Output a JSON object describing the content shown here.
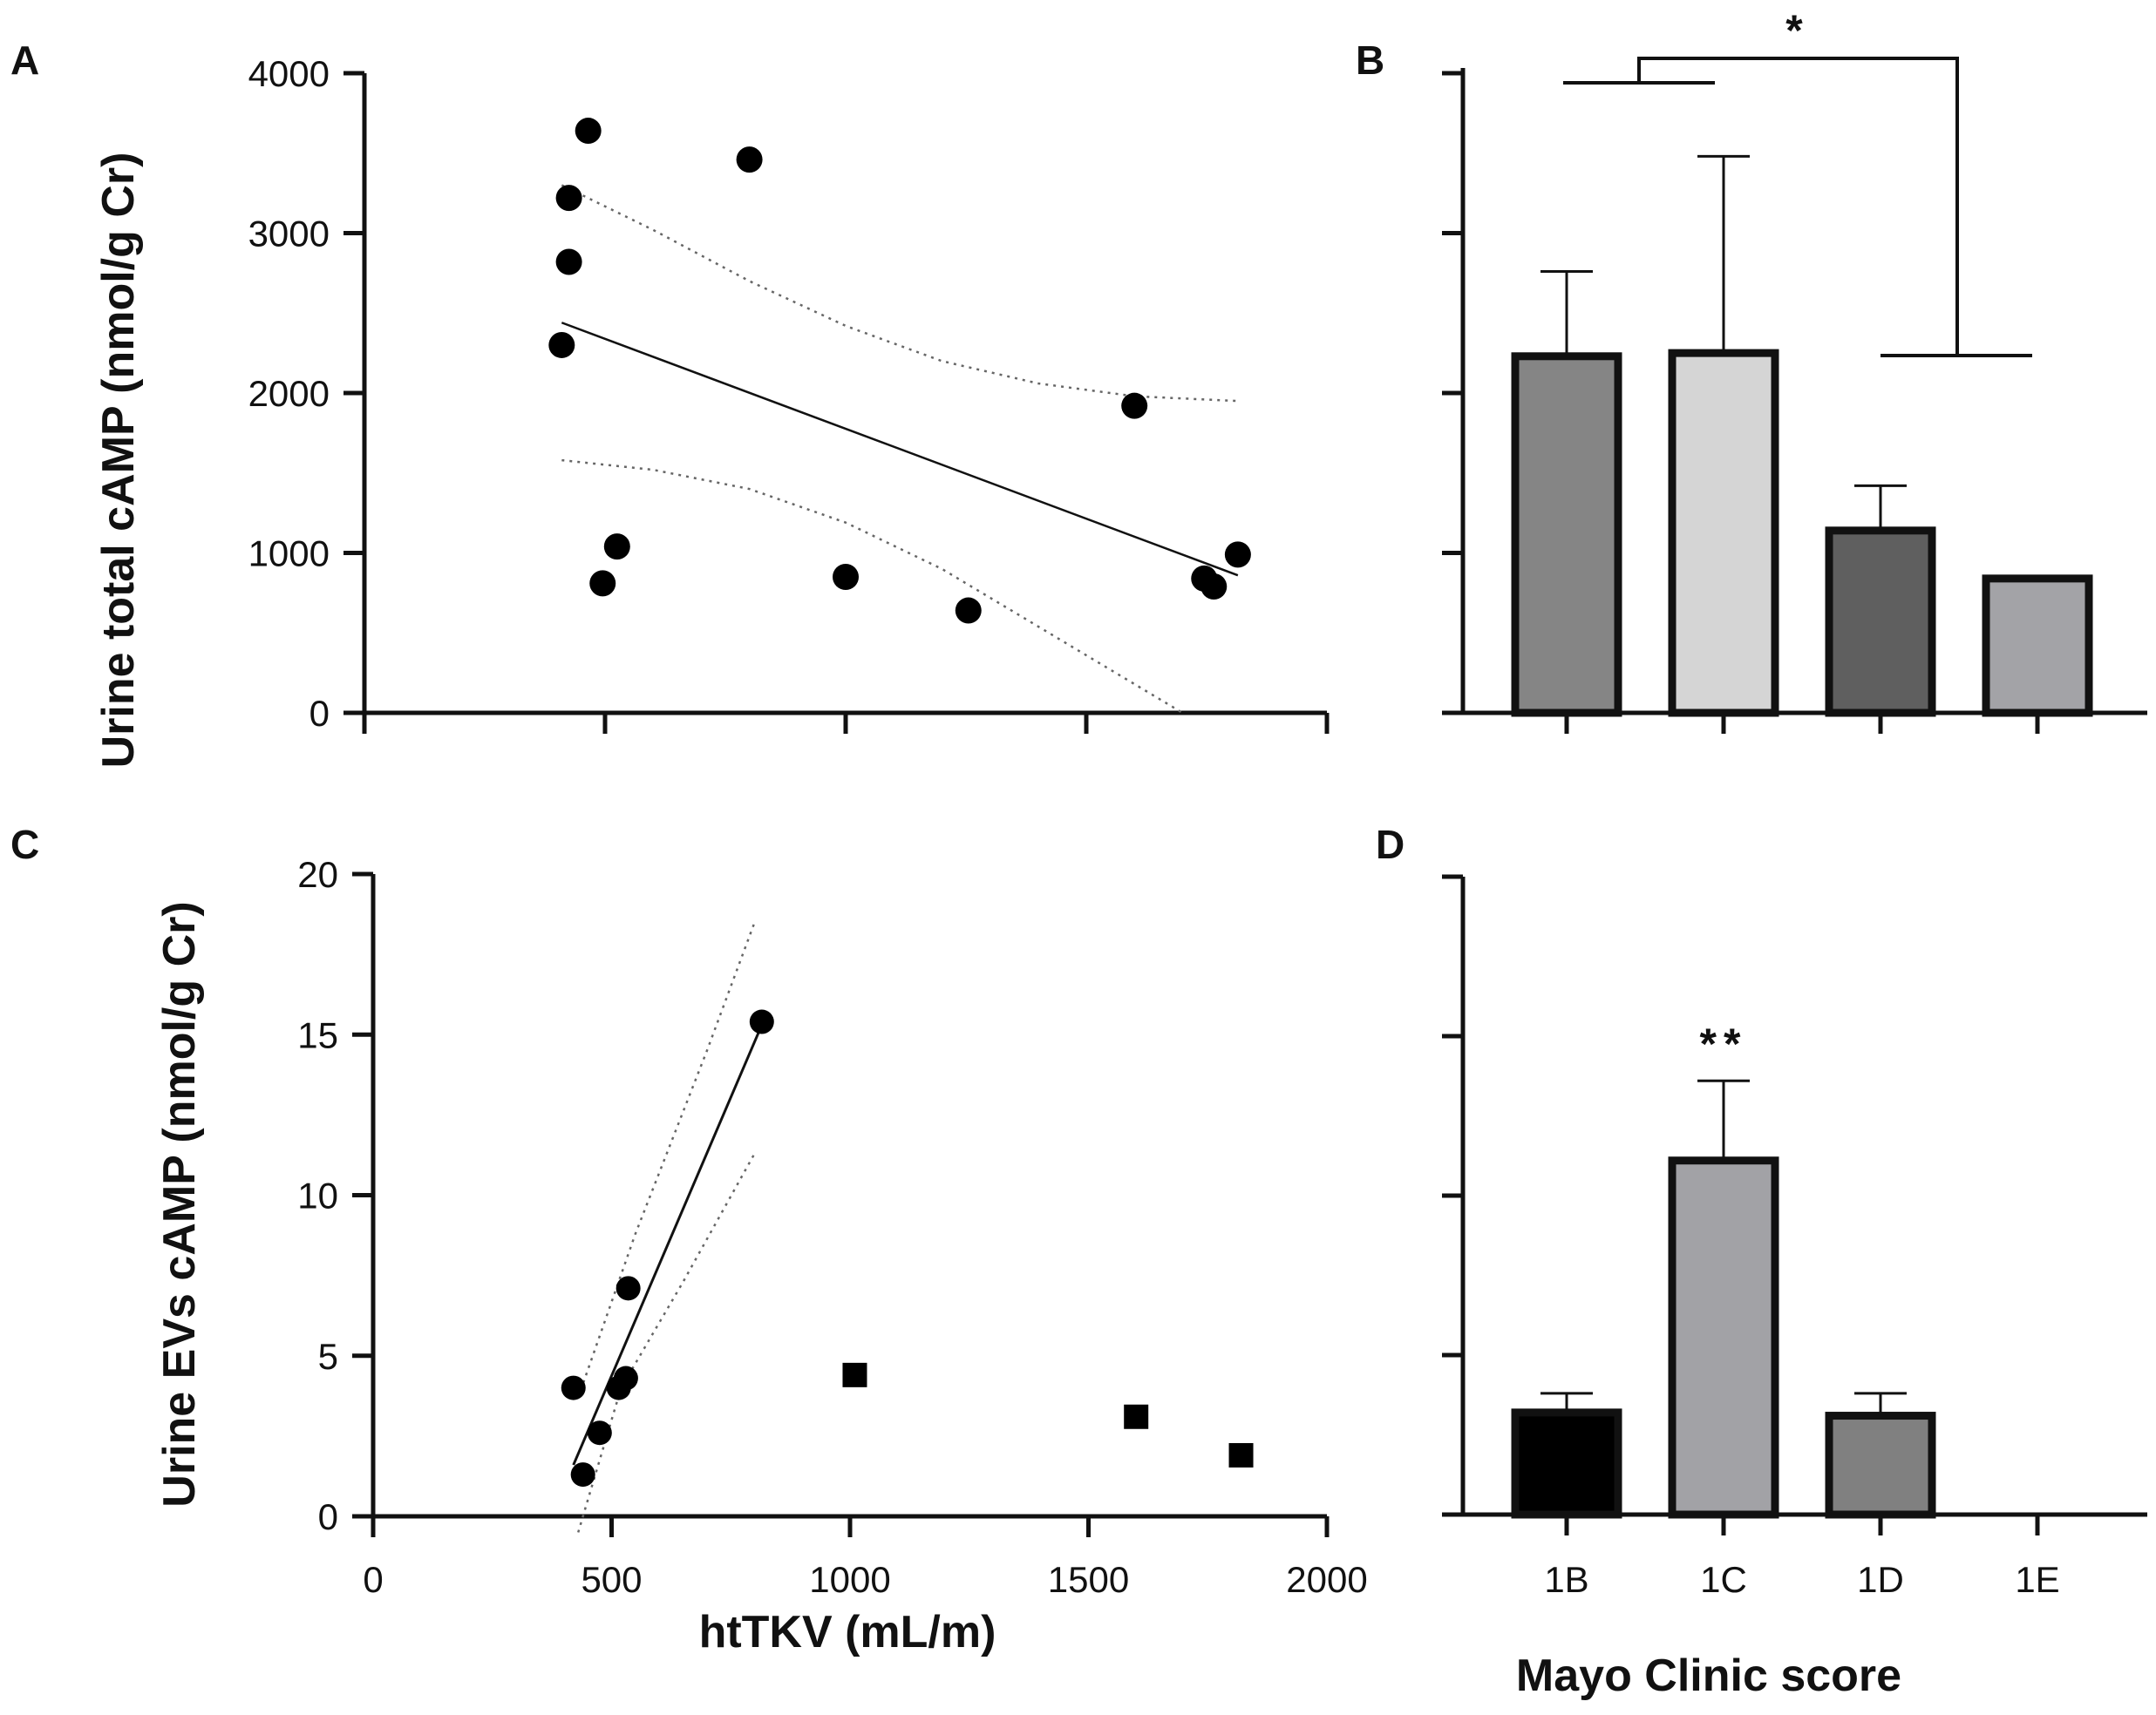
{
  "chart_data": [
    {
      "panel": "A",
      "type": "scatter",
      "xlabel": "",
      "ylabel": "Urine total cAMP  (nmol/g Cr)",
      "xlim": [
        0,
        2000
      ],
      "ylim": [
        0,
        4000
      ],
      "yticks": [
        "0",
        "1000",
        "2000",
        "3000",
        "4000"
      ],
      "points": [
        {
          "x": 410,
          "y": 2300
        },
        {
          "x": 425,
          "y": 2820
        },
        {
          "x": 425,
          "y": 3220
        },
        {
          "x": 465,
          "y": 3640
        },
        {
          "x": 800,
          "y": 3460
        },
        {
          "x": 495,
          "y": 810
        },
        {
          "x": 525,
          "y": 1040
        },
        {
          "x": 1000,
          "y": 850
        },
        {
          "x": 1255,
          "y": 640
        },
        {
          "x": 1600,
          "y": 1920
        },
        {
          "x": 1745,
          "y": 840
        },
        {
          "x": 1765,
          "y": 790
        },
        {
          "x": 1815,
          "y": 990
        }
      ],
      "fit_line": {
        "x": [
          410,
          1815
        ],
        "y": [
          2440,
          860
        ]
      },
      "ci_upper": {
        "x": [
          410,
          600,
          800,
          1000,
          1200,
          1400,
          1600,
          1815
        ],
        "y": [
          3300,
          3020,
          2700,
          2420,
          2200,
          2060,
          1980,
          1950
        ]
      },
      "ci_lower": {
        "x": [
          410,
          600,
          800,
          1000,
          1200,
          1400,
          1600,
          1700
        ],
        "y": [
          1580,
          1520,
          1400,
          1190,
          900,
          540,
          180,
          0
        ]
      }
    },
    {
      "panel": "B",
      "type": "bar",
      "categories": [
        "1B",
        "1C",
        "1D",
        "1E"
      ],
      "values": [
        2230,
        2250,
        1140,
        840
      ],
      "errors": [
        530,
        1230,
        280,
        0
      ],
      "colors": [
        "#858585",
        "#d5d5d5",
        "#5f5f5f",
        "#a3a3a7"
      ],
      "ylim": [
        0,
        4000
      ],
      "significance": "*"
    },
    {
      "panel": "C",
      "type": "scatter",
      "xlabel": "htTKV (mL/m)",
      "ylabel": "Urine EVs cAMP (nmol/g Cr)",
      "xlim": [
        0,
        2000
      ],
      "ylim": [
        0,
        20
      ],
      "xticks": [
        "0",
        "500",
        "1000",
        "1500",
        "2000"
      ],
      "yticks": [
        "0",
        "5",
        "10",
        "15",
        "20"
      ],
      "circles": [
        {
          "x": 420,
          "y": 4.0
        },
        {
          "x": 440,
          "y": 1.3
        },
        {
          "x": 475,
          "y": 2.6
        },
        {
          "x": 515,
          "y": 4.0
        },
        {
          "x": 530,
          "y": 4.3
        },
        {
          "x": 535,
          "y": 7.1
        },
        {
          "x": 815,
          "y": 15.4
        }
      ],
      "squares": [
        {
          "x": 1010,
          "y": 4.4
        },
        {
          "x": 1600,
          "y": 3.1
        },
        {
          "x": 1820,
          "y": 1.9
        }
      ],
      "fit_line": {
        "x": [
          420,
          815
        ],
        "y": [
          1.6,
          15.3
        ]
      },
      "ci_upper": {
        "x": [
          430,
          550,
          700,
          800
        ],
        "y": [
          3.7,
          8.8,
          14.5,
          18.5
        ]
      },
      "ci_lower": {
        "x": [
          430,
          520,
          650,
          800
        ],
        "y": [
          -0.5,
          4.0,
          7.3,
          11.3
        ]
      }
    },
    {
      "panel": "D",
      "type": "bar",
      "categories": [
        "1B",
        "1C",
        "1D",
        "1E"
      ],
      "values": [
        3.2,
        11.1,
        3.1,
        0
      ],
      "errors": [
        0.6,
        2.5,
        0.7,
        0
      ],
      "colors": [
        "#000000",
        "#a2a2a6",
        "#808080",
        "#ffffff"
      ],
      "ylim": [
        0,
        20
      ],
      "xlabel": "Mayo Clinic score",
      "significance": "**"
    }
  ],
  "panel_labels": [
    "A",
    "B",
    "C",
    "D"
  ]
}
